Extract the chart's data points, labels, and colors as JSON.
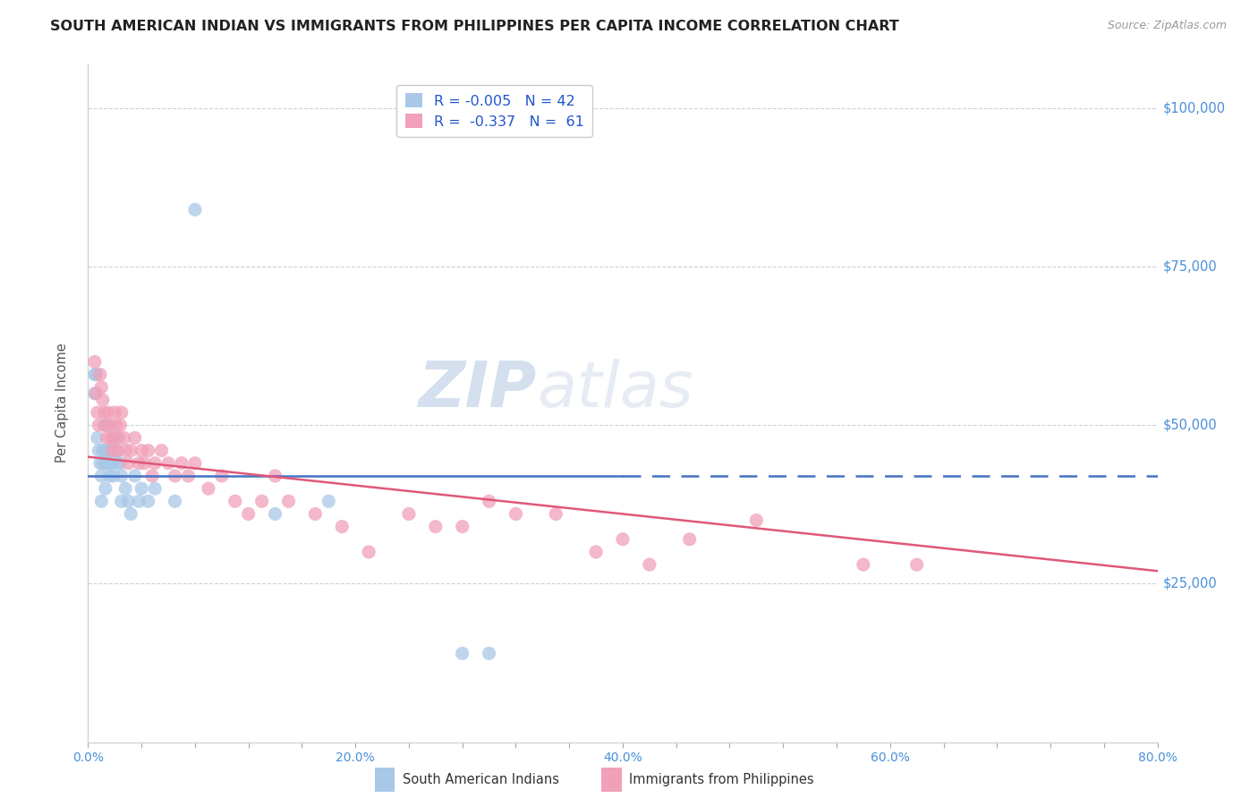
{
  "title": "SOUTH AMERICAN INDIAN VS IMMIGRANTS FROM PHILIPPINES PER CAPITA INCOME CORRELATION CHART",
  "source": "Source: ZipAtlas.com",
  "ylabel": "Per Capita Income",
  "xlim": [
    0.0,
    0.8
  ],
  "ylim": [
    0,
    107000
  ],
  "yticks": [
    0,
    25000,
    50000,
    75000,
    100000
  ],
  "ytick_labels": [
    "",
    "$25,000",
    "$50,000",
    "$75,000",
    "$100,000"
  ],
  "xtick_labels": [
    "0.0%",
    "",
    "",
    "",
    "",
    "20.0%",
    "",
    "",
    "",
    "",
    "40.0%",
    "",
    "",
    "",
    "",
    "60.0%",
    "",
    "",
    "",
    "",
    "80.0%"
  ],
  "xticks": [
    0.0,
    0.04,
    0.08,
    0.12,
    0.16,
    0.2,
    0.24,
    0.28,
    0.32,
    0.36,
    0.4,
    0.44,
    0.48,
    0.52,
    0.56,
    0.6,
    0.64,
    0.68,
    0.72,
    0.76,
    0.8
  ],
  "blue_color": "#a8c8e8",
  "pink_color": "#f0a0b8",
  "blue_line_color": "#4472c4",
  "pink_line_color": "#e05878",
  "tick_color": "#4a90d9",
  "grid_color": "#d0d0d8",
  "watermark_zip": "ZIP",
  "watermark_atlas": "atlas",
  "legend_r1": "R = -0.005",
  "legend_n1": "N = 42",
  "legend_r2": "R = -0.337",
  "legend_n2": "N = 61",
  "legend_label1": "South American Indians",
  "legend_label2": "Immigrants from Philippines",
  "blue_scatter_x": [
    0.005,
    0.005,
    0.006,
    0.007,
    0.008,
    0.009,
    0.01,
    0.01,
    0.011,
    0.011,
    0.012,
    0.012,
    0.013,
    0.013,
    0.014,
    0.015,
    0.015,
    0.016,
    0.016,
    0.017,
    0.018,
    0.019,
    0.02,
    0.022,
    0.022,
    0.024,
    0.025,
    0.025,
    0.028,
    0.03,
    0.032,
    0.035,
    0.038,
    0.04,
    0.045,
    0.05,
    0.065,
    0.08,
    0.14,
    0.18,
    0.28,
    0.3
  ],
  "blue_scatter_y": [
    58000,
    55000,
    58000,
    48000,
    46000,
    44000,
    42000,
    38000,
    46000,
    44000,
    50000,
    46000,
    44000,
    40000,
    46000,
    50000,
    44000,
    46000,
    42000,
    46000,
    44000,
    42000,
    48000,
    46000,
    44000,
    44000,
    42000,
    38000,
    40000,
    38000,
    36000,
    42000,
    38000,
    40000,
    38000,
    40000,
    38000,
    84000,
    36000,
    38000,
    14000,
    14000
  ],
  "pink_scatter_x": [
    0.005,
    0.006,
    0.007,
    0.008,
    0.009,
    0.01,
    0.011,
    0.012,
    0.013,
    0.014,
    0.015,
    0.016,
    0.017,
    0.018,
    0.019,
    0.02,
    0.021,
    0.022,
    0.023,
    0.024,
    0.025,
    0.027,
    0.028,
    0.03,
    0.032,
    0.035,
    0.038,
    0.04,
    0.042,
    0.045,
    0.048,
    0.05,
    0.055,
    0.06,
    0.065,
    0.07,
    0.075,
    0.08,
    0.09,
    0.1,
    0.11,
    0.12,
    0.13,
    0.14,
    0.15,
    0.17,
    0.19,
    0.21,
    0.24,
    0.26,
    0.28,
    0.3,
    0.32,
    0.35,
    0.38,
    0.4,
    0.42,
    0.45,
    0.5,
    0.58,
    0.62
  ],
  "pink_scatter_y": [
    60000,
    55000,
    52000,
    50000,
    58000,
    56000,
    54000,
    52000,
    50000,
    48000,
    52000,
    50000,
    48000,
    46000,
    48000,
    52000,
    50000,
    46000,
    48000,
    50000,
    52000,
    48000,
    46000,
    44000,
    46000,
    48000,
    44000,
    46000,
    44000,
    46000,
    42000,
    44000,
    46000,
    44000,
    42000,
    44000,
    42000,
    44000,
    40000,
    42000,
    38000,
    36000,
    38000,
    42000,
    38000,
    36000,
    34000,
    30000,
    36000,
    34000,
    34000,
    38000,
    36000,
    36000,
    30000,
    32000,
    28000,
    32000,
    35000,
    28000,
    28000
  ],
  "blue_line_x": [
    0.0,
    0.4,
    0.8
  ],
  "blue_line_y": [
    42000,
    42000,
    42000
  ],
  "pink_line_x": [
    0.0,
    0.8
  ],
  "pink_line_y": [
    45000,
    27000
  ]
}
